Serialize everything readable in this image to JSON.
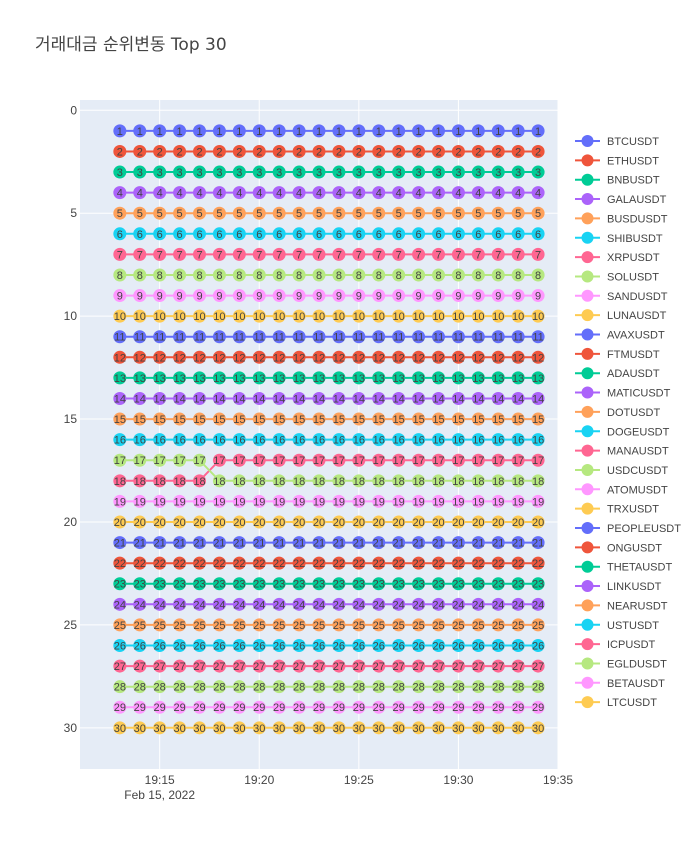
{
  "chart_data": {
    "type": "line",
    "title": "거래대금 순위변동 Top 30",
    "xaxis": {
      "kind": "time",
      "start": "2022-02-15 19:13",
      "end": "2022-02-15 19:34",
      "range": [
        "2022-02-15 19:11",
        "2022-02-15 19:35"
      ],
      "tick_labels": [
        "19:15",
        "19:20",
        "19:25",
        "19:30",
        "19:35"
      ],
      "tick_values": [
        "2022-02-15 19:15",
        "2022-02-15 19:20",
        "2022-02-15 19:25",
        "2022-02-15 19:30",
        "2022-02-15 19:35"
      ],
      "date_label": "Feb 15, 2022"
    },
    "yaxis": {
      "reversed": true,
      "ylim": [
        32,
        -0.5
      ],
      "tick_labels": [
        "0",
        "5",
        "10",
        "15",
        "20",
        "25",
        "30"
      ]
    },
    "x": [
      "19:13",
      "19:14",
      "19:15",
      "19:16",
      "19:17",
      "19:18",
      "19:19",
      "19:20",
      "19:21",
      "19:22",
      "19:23",
      "19:24",
      "19:25",
      "19:26",
      "19:27",
      "19:28",
      "19:29",
      "19:30",
      "19:31",
      "19:32",
      "19:33",
      "19:34"
    ],
    "x_dates": [
      "2022-02-15 19:13",
      "2022-02-15 19:14",
      "2022-02-15 19:15",
      "2022-02-15 19:16",
      "2022-02-15 19:17",
      "2022-02-15 19:18",
      "2022-02-15 19:19",
      "2022-02-15 19:20",
      "2022-02-15 19:21",
      "2022-02-15 19:22",
      "2022-02-15 19:23",
      "2022-02-15 19:24",
      "2022-02-15 19:25",
      "2022-02-15 19:26",
      "2022-02-15 19:27",
      "2022-02-15 19:28",
      "2022-02-15 19:29",
      "2022-02-15 19:30",
      "2022-02-15 19:31",
      "2022-02-15 19:32",
      "2022-02-15 19:33",
      "2022-02-15 19:34"
    ],
    "legend_position": "right",
    "grid": true,
    "plot_background": "#e5ecf6",
    "series": [
      {
        "name": "BTCUSDT",
        "rank": 1,
        "color": "#636efa"
      },
      {
        "name": "ETHUSDT",
        "rank": 2,
        "color": "#EF553B"
      },
      {
        "name": "BNBUSDT",
        "rank": 3,
        "color": "#00cc96"
      },
      {
        "name": "GALAUSDT",
        "rank": 4,
        "color": "#ab63fa"
      },
      {
        "name": "BUSDUSDT",
        "rank": 5,
        "color": "#FFA15A"
      },
      {
        "name": "SHIBUSDT",
        "rank": 6,
        "color": "#19d3f3"
      },
      {
        "name": "XRPUSDT",
        "rank": 7,
        "color": "#FF6692"
      },
      {
        "name": "SOLUSDT",
        "rank": 8,
        "color": "#B6E880"
      },
      {
        "name": "SANDUSDT",
        "rank": 9,
        "color": "#FF97FF"
      },
      {
        "name": "LUNAUSDT",
        "rank": 10,
        "color": "#FECB52"
      },
      {
        "name": "AVAXUSDT",
        "rank": 11,
        "color": "#636efa"
      },
      {
        "name": "FTMUSDT",
        "rank": 12,
        "color": "#EF553B"
      },
      {
        "name": "ADAUSDT",
        "rank": 13,
        "color": "#00cc96"
      },
      {
        "name": "MATICUSDT",
        "rank": 14,
        "color": "#ab63fa"
      },
      {
        "name": "DOTUSDT",
        "rank": 15,
        "color": "#FFA15A"
      },
      {
        "name": "DOGEUSDT",
        "rank": 16,
        "color": "#19d3f3"
      },
      {
        "name": "MANAUSDT",
        "values": [
          18,
          18,
          18,
          18,
          18,
          17,
          17,
          17,
          17,
          17,
          17,
          17,
          17,
          17,
          17,
          17,
          17,
          17,
          17,
          17,
          17,
          17
        ],
        "color": "#FF6692"
      },
      {
        "name": "USDCUSDT",
        "values": [
          17,
          17,
          17,
          17,
          17,
          18,
          18,
          18,
          18,
          18,
          18,
          18,
          18,
          18,
          18,
          18,
          18,
          18,
          18,
          18,
          18,
          18
        ],
        "color": "#B6E880"
      },
      {
        "name": "ATOMUSDT",
        "rank": 19,
        "color": "#FF97FF"
      },
      {
        "name": "TRXUSDT",
        "rank": 20,
        "color": "#FECB52"
      },
      {
        "name": "PEOPLEUSDT",
        "rank": 21,
        "color": "#636efa"
      },
      {
        "name": "ONGUSDT",
        "rank": 22,
        "color": "#EF553B"
      },
      {
        "name": "THETAUSDT",
        "rank": 23,
        "color": "#00cc96"
      },
      {
        "name": "LINKUSDT",
        "rank": 24,
        "color": "#ab63fa"
      },
      {
        "name": "NEARUSDT",
        "rank": 25,
        "color": "#FFA15A"
      },
      {
        "name": "USTUSDT",
        "rank": 26,
        "color": "#19d3f3"
      },
      {
        "name": "ICPUSDT",
        "rank": 27,
        "color": "#FF6692"
      },
      {
        "name": "EGLDUSDT",
        "rank": 28,
        "color": "#B6E880"
      },
      {
        "name": "BETAUSDT",
        "rank": 29,
        "color": "#FF97FF"
      },
      {
        "name": "LTCUSDT",
        "rank": 30,
        "color": "#FECB52"
      }
    ]
  }
}
